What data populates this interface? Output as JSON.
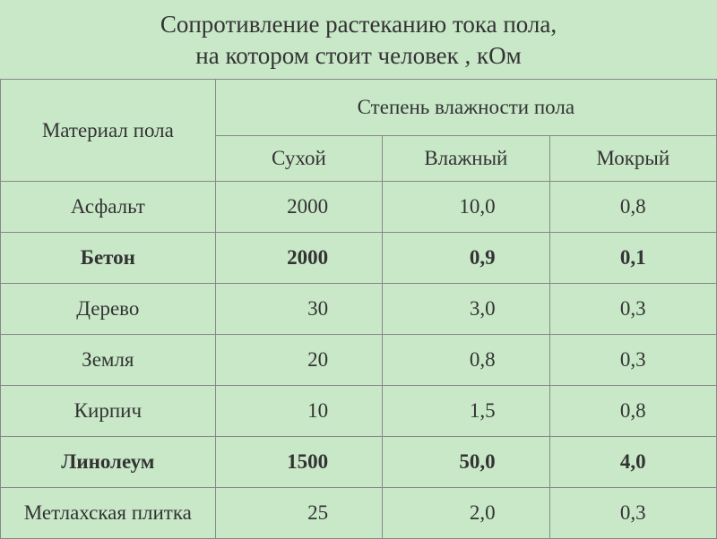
{
  "title_line1": "Сопротивление растеканию тока пола,",
  "title_line2": "на котором стоит человек",
  "title_unit": "кОм",
  "table": {
    "header_material": "Материал пола",
    "header_moisture": "Степень влажности пола",
    "subheaders": {
      "dry": "Сухой",
      "damp": "Влажный",
      "wet": "Мокрый"
    },
    "rows": [
      {
        "material": "Асфальт",
        "dry": "2000",
        "damp": "10,0",
        "wet": "0,8",
        "bold": false
      },
      {
        "material": "Бетон",
        "dry": "2000",
        "damp": "0,9",
        "wet": "0,1",
        "bold": true
      },
      {
        "material": "Дерево",
        "dry": "30",
        "damp": "3,0",
        "wet": "0,3",
        "bold": false
      },
      {
        "material": "Земля",
        "dry": "20",
        "damp": "0,8",
        "wet": "0,3",
        "bold": false
      },
      {
        "material": "Кирпич",
        "dry": "10",
        "damp": "1,5",
        "wet": "0,8",
        "bold": false
      },
      {
        "material": "Линолеум",
        "dry": "1500",
        "damp": "50,0",
        "wet": "4,0",
        "bold": true
      },
      {
        "material": "Метлахская плитка",
        "dry": "25",
        "damp": "2,0",
        "wet": "0,3",
        "bold": false
      }
    ]
  },
  "colors": {
    "background": "#c8e8c8",
    "border": "#888888",
    "text": "#333333"
  }
}
